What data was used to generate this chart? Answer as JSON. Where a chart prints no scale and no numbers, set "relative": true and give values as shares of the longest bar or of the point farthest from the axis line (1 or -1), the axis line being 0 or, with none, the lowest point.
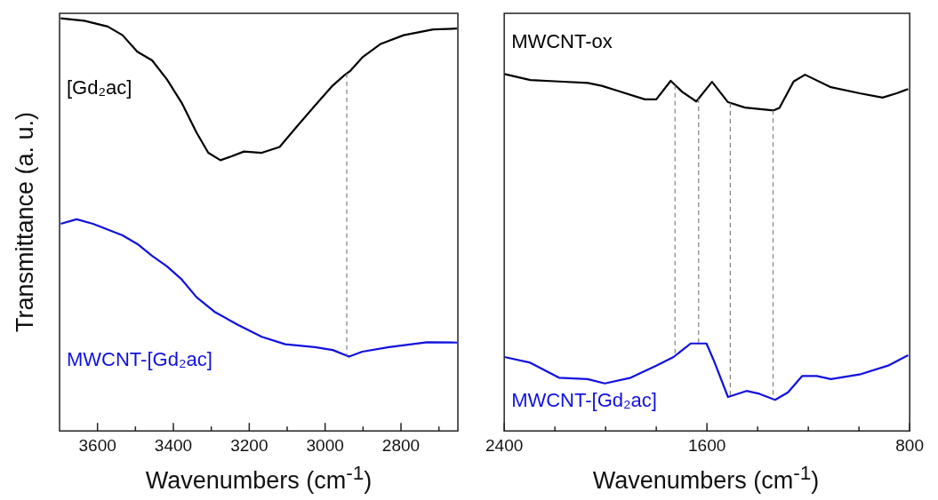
{
  "chart_data": [
    {
      "type": "line",
      "relative": true,
      "ylabel": "Transmittance (a. u.)",
      "xlabel": "Wavenumbers (cm$^{-1}$)",
      "xlim": [
        3700,
        2650
      ],
      "xticks": [
        3600,
        {
          "value": 3500,
          "label": null
        },
        3400,
        {
          "value": 3300,
          "label": null
        },
        3200,
        {
          "value": 3100,
          "label": null
        },
        3000,
        {
          "value": 2900,
          "label": null
        },
        2800,
        {
          "value": 2700,
          "label": null
        }
      ],
      "grid": false,
      "legend": false,
      "marker": "none",
      "line_style": "solid",
      "ref_lines": [
        {
          "axis": "x",
          "value": 2943,
          "color": "#808080",
          "line_style": "dashed"
        }
      ],
      "series": [
        {
          "name": "[Gd₂ac]",
          "color": "#000000",
          "x": [
            3697,
            3635,
            3573,
            3534,
            3495,
            3456,
            3417,
            3378,
            3339,
            3308,
            3276,
            3245,
            3214,
            3167,
            3120,
            3074,
            3027,
            2980,
            2949,
            2933,
            2902,
            2855,
            2793,
            2715,
            2652
          ],
          "values": [
            1.0,
            0.994,
            0.98,
            0.959,
            0.919,
            0.898,
            0.852,
            0.795,
            0.723,
            0.674,
            0.656,
            0.666,
            0.677,
            0.674,
            0.688,
            0.738,
            0.788,
            0.837,
            0.862,
            0.873,
            0.905,
            0.937,
            0.959,
            0.973,
            0.975
          ]
        },
        {
          "name": "MWCNT-[Gd₂ac]",
          "color": "#1010e0",
          "x": [
            3697,
            3655,
            3612,
            3573,
            3534,
            3495,
            3456,
            3417,
            3378,
            3339,
            3292,
            3230,
            3167,
            3105,
            3027,
            2980,
            2937,
            2902,
            2832,
            2731,
            2652
          ],
          "values": [
            0.502,
            0.513,
            0.502,
            0.488,
            0.474,
            0.453,
            0.424,
            0.399,
            0.367,
            0.324,
            0.289,
            0.257,
            0.228,
            0.21,
            0.203,
            0.196,
            0.18,
            0.192,
            0.203,
            0.215,
            0.214
          ]
        }
      ]
    },
    {
      "type": "line",
      "relative": true,
      "xlabel": "Wavenumbers (cm$^{-1}$)",
      "xlim": [
        2400,
        800
      ],
      "xticks": [
        2400,
        {
          "value": 2200,
          "label": null
        },
        {
          "value": 2000,
          "label": null
        },
        {
          "value": 1800,
          "label": null
        },
        1600,
        {
          "value": 1400,
          "label": null
        },
        {
          "value": 1200,
          "label": null
        },
        {
          "value": 1000,
          "label": null
        },
        800
      ],
      "grid": false,
      "legend": false,
      "marker": "none",
      "line_style": "solid",
      "ref_lines": [
        {
          "axis": "x",
          "value": 1726,
          "color": "#808080",
          "line_style": "dashed"
        },
        {
          "axis": "x",
          "value": 1633,
          "color": "#808080",
          "line_style": "dashed"
        },
        {
          "axis": "x",
          "value": 1508,
          "color": "#808080",
          "line_style": "dashed"
        },
        {
          "axis": "x",
          "value": 1339,
          "color": "#808080",
          "line_style": "dashed"
        }
      ],
      "series": [
        {
          "name": "MWCNT-ox",
          "color": "#000000",
          "x": [
            2399,
            2297,
            2184,
            2071,
            2015,
            1958,
            1845,
            1800,
            1743,
            1698,
            1642,
            1580,
            1517,
            1450,
            1337,
            1314,
            1258,
            1213,
            1111,
            998,
            907,
            851,
            806
          ],
          "values": [
            1.0,
            0.983,
            0.979,
            0.975,
            0.967,
            0.954,
            0.929,
            0.929,
            0.981,
            0.95,
            0.923,
            0.978,
            0.921,
            0.906,
            0.898,
            0.905,
            0.979,
            0.998,
            0.963,
            0.946,
            0.934,
            0.946,
            0.958
          ]
        },
        {
          "name": "MWCNT-[Gd₂ac]",
          "color": "#1010e0",
          "x": [
            2399,
            2297,
            2184,
            2071,
            2003,
            1901,
            1800,
            1732,
            1664,
            1602,
            1574,
            1517,
            1444,
            1393,
            1331,
            1280,
            1224,
            1167,
            1111,
            998,
            885,
            806
          ],
          "values": [
            0.207,
            0.191,
            0.149,
            0.145,
            0.133,
            0.149,
            0.183,
            0.207,
            0.245,
            0.245,
            0.199,
            0.095,
            0.112,
            0.104,
            0.087,
            0.108,
            0.154,
            0.154,
            0.145,
            0.158,
            0.183,
            0.212
          ]
        }
      ]
    }
  ]
}
